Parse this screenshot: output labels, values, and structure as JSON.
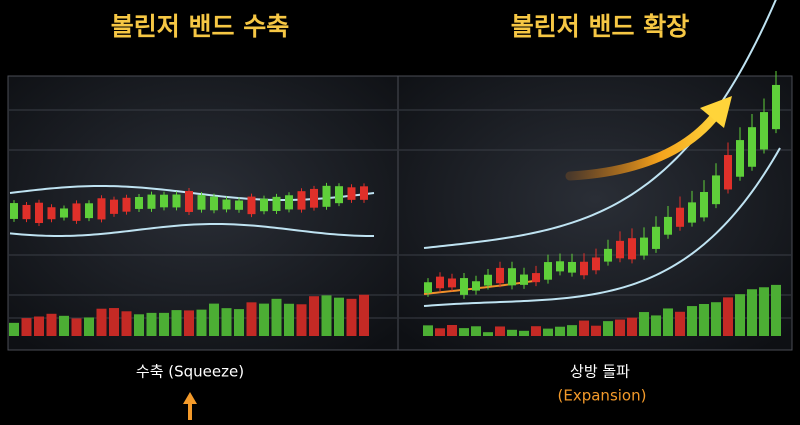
{
  "panels": [
    {
      "title": "볼린저 밴드 수축",
      "caption": "수축 (Squeeze)"
    },
    {
      "title": "볼린저 밴드 확장",
      "caption": "상방 돌파",
      "subcaption": "(Expansion)"
    }
  ]
}
